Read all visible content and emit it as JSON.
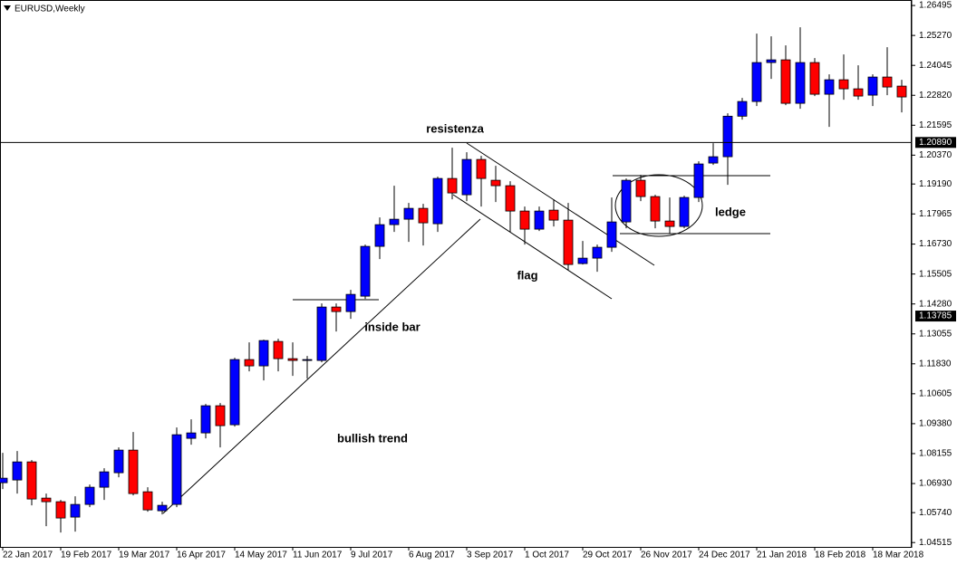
{
  "chart_data": {
    "type": "candlestick",
    "title": "EURUSD,Weekly",
    "categories": [
      "22 Jan 2017",
      null,
      null,
      null,
      "19 Feb 2017",
      null,
      null,
      null,
      "19 Mar 2017",
      null,
      null,
      null,
      "16 Apr 2017",
      null,
      null,
      null,
      "14 May 2017",
      null,
      null,
      null,
      "11 Jun 2017",
      null,
      null,
      null,
      "9 Jul 2017",
      null,
      null,
      null,
      "6 Aug 2017",
      null,
      null,
      null,
      "3 Sep 2017",
      null,
      null,
      null,
      "1 Oct 2017",
      null,
      null,
      null,
      "29 Oct 2017",
      null,
      null,
      null,
      "26 Nov 2017",
      null,
      null,
      null,
      "24 Dec 2017",
      null,
      null,
      null,
      "21 Jan 2018",
      null,
      null,
      null,
      "18 Feb 2018",
      null,
      null,
      null,
      "18 Mar 2018",
      null,
      null
    ],
    "open": [
      1.06964,
      1.07075,
      1.07816,
      1.06334,
      1.06186,
      1.05556,
      1.06075,
      1.06779,
      1.07372,
      1.08298,
      1.06593,
      1.05815,
      1.06075,
      1.0878,
      1.09002,
      1.10114,
      1.09336,
      1.12004,
      1.11745,
      1.12745,
      1.12041,
      1.11967,
      1.11967,
      1.14154,
      1.13968,
      1.14598,
      1.16637,
      1.17526,
      1.17748,
      1.18193,
      1.17563,
      1.19416,
      1.18749,
      1.20194,
      1.19342,
      1.1912,
      1.18082,
      1.17341,
      1.18119,
      1.17711,
      1.15933,
      1.16155,
      1.166,
      1.17637,
      1.19342,
      1.18675,
      1.17674,
      1.17452,
      1.18638,
      1.20046,
      1.20306,
      1.21964,
      1.22566,
      1.2416,
      1.24271,
      1.22492,
      1.2416,
      1.22863,
      1.23456,
      1.23085,
      1.22826,
      1.23567,
      1.23196
    ],
    "high": [
      1.08187,
      1.08261,
      1.0789,
      1.06519,
      1.0626,
      1.06408,
      1.0689,
      1.07557,
      1.08409,
      1.09039,
      1.06779,
      1.06186,
      1.09225,
      1.09558,
      1.10188,
      1.10225,
      1.12078,
      1.12708,
      1.12819,
      1.12857,
      1.12708,
      1.12152,
      1.14302,
      1.14302,
      1.14858,
      1.16711,
      1.17823,
      1.1912,
      1.18416,
      1.18378,
      1.1949,
      1.20676,
      1.20491,
      1.20343,
      1.19935,
      1.19305,
      1.18267,
      1.18267,
      1.18564,
      1.18416,
      1.16859,
      1.16711,
      1.18638,
      1.19416,
      1.19564,
      1.18749,
      1.18638,
      1.18712,
      1.2012,
      1.20862,
      1.22084,
      1.22715,
      1.25346,
      1.25235,
      1.24864,
      1.25605,
      1.24345,
      1.23678,
      1.24493,
      1.24049,
      1.23678,
      1.2479,
      1.23456
    ],
    "low": [
      1.06705,
      1.06519,
      1.06038,
      1.05185,
      1.04926,
      1.04963,
      1.05963,
      1.0626,
      1.07186,
      1.06445,
      1.05778,
      1.05667,
      1.05963,
      1.08521,
      1.0878,
      1.08409,
      1.09262,
      1.11522,
      1.11152,
      1.11522,
      1.11337,
      1.11226,
      1.11893,
      1.13153,
      1.13672,
      1.14487,
      1.16118,
      1.1723,
      1.16822,
      1.16674,
      1.1723,
      1.18564,
      1.1849,
      1.18267,
      1.18453,
      1.1723,
      1.16711,
      1.17267,
      1.17452,
      1.15673,
      1.15895,
      1.15599,
      1.16414,
      1.17378,
      1.1849,
      1.17378,
      1.17156,
      1.17378,
      1.18453,
      1.19972,
      1.19157,
      1.21825,
      1.22381,
      1.23493,
      1.22418,
      1.2227,
      1.22789,
      1.21529,
      1.2264,
      1.2264,
      1.22381,
      1.22826,
      1.22122
    ],
    "close": [
      1.07149,
      1.07816,
      1.06297,
      1.06186,
      1.05519,
      1.06075,
      1.06779,
      1.07409,
      1.08298,
      1.06519,
      1.05852,
      1.06038,
      1.08928,
      1.09002,
      1.10114,
      1.09299,
      1.12004,
      1.11745,
      1.12782,
      1.12041,
      1.11967,
      1.12004,
      1.14154,
      1.13968,
      1.14672,
      1.16637,
      1.17526,
      1.17748,
      1.18193,
      1.176,
      1.19416,
      1.18823,
      1.20194,
      1.19416,
      1.1912,
      1.18082,
      1.17341,
      1.18082,
      1.17711,
      1.15895,
      1.16155,
      1.166,
      1.17637,
      1.19342,
      1.18675,
      1.17674,
      1.17452,
      1.18638,
      1.20009,
      1.20306,
      1.21964,
      1.22566,
      1.2416,
      1.24271,
      1.22492,
      1.2416,
      1.22863,
      1.23456,
      1.23085,
      1.22789,
      1.23567,
      1.23159,
      1.22752
    ],
    "up_color": "#0000ff",
    "down_color": "#ff0000",
    "ylim": [
      1.043,
      1.2672
    ],
    "yticks": [
      {
        "value": 1.04515,
        "label": "1.04515"
      },
      {
        "value": 1.0574,
        "label": "1.05740"
      },
      {
        "value": 1.0693,
        "label": "1.06930"
      },
      1.08155,
      {
        "value": 1.0938,
        "label": "1.09380"
      },
      1.10605,
      {
        "value": 1.1183,
        "label": "1.11830"
      },
      1.13055,
      {
        "value": 1.1428,
        "label": "1.14280"
      },
      1.15505,
      {
        "value": 1.1673,
        "label": "1.16730"
      },
      1.17965,
      {
        "value": 1.1919,
        "label": "1.19190"
      },
      {
        "value": 1.2037,
        "label": "1.20370"
      },
      1.21595,
      {
        "value": 1.2282,
        "label": "1.22820"
      },
      1.24045,
      {
        "value": 1.2527,
        "label": "1.25270"
      },
      1.26495
    ],
    "price_labels": [
      {
        "value": 1.2089,
        "label": "1.20890"
      },
      1.13785
    ],
    "annotations": [
      "resistenza",
      "flag",
      "inside bar",
      "bullish trend",
      "ledge"
    ]
  }
}
